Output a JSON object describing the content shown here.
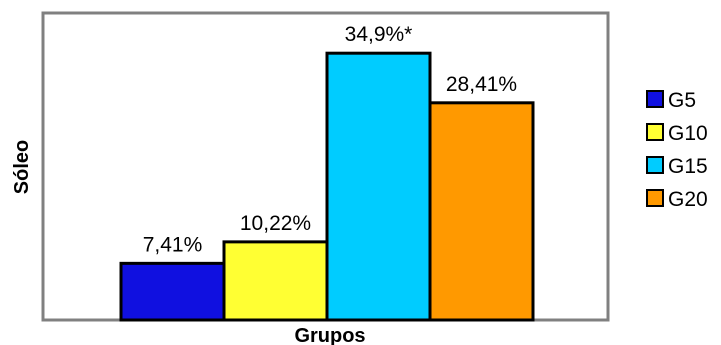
{
  "chart_data": {
    "type": "bar",
    "categories": [
      "G5",
      "G10",
      "G15",
      "G20"
    ],
    "values": [
      7.41,
      10.22,
      34.9,
      28.41
    ],
    "value_labels": [
      "7,41%",
      "10,22%",
      "34,9%*",
      "28,41%"
    ],
    "colors": [
      "#1010e0",
      "#ffff33",
      "#00ccff",
      "#ff9900"
    ],
    "xlabel": "Grupos",
    "ylabel": "Sóleo",
    "ylim": [
      0,
      40
    ],
    "grid": false,
    "legend_position": "right",
    "legend": [
      {
        "label": "G5",
        "color": "#1010e0"
      },
      {
        "label": "G10",
        "color": "#ffff33"
      },
      {
        "label": "G15",
        "color": "#00ccff"
      },
      {
        "label": "G20",
        "color": "#ff9900"
      }
    ]
  }
}
